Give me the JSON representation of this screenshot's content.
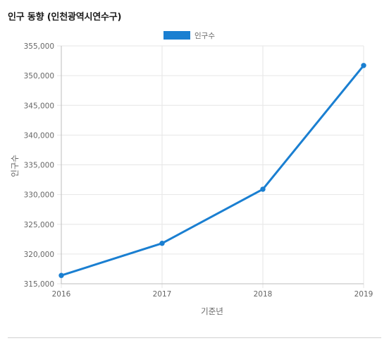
{
  "page": {
    "title": "인구 동향 (인천광역시연수구)"
  },
  "chart_data": {
    "type": "line",
    "x": [
      "2016",
      "2017",
      "2018",
      "2019"
    ],
    "series": [
      {
        "name": "인구수",
        "values": [
          316400,
          321800,
          330900,
          351700
        ],
        "color": "#1a7fd1"
      }
    ],
    "xlabel": "기준년",
    "ylabel": "인구수",
    "ylim": [
      315000,
      355000
    ],
    "yticks": [
      "315,000",
      "320,000",
      "325,000",
      "330,000",
      "335,000",
      "340,000",
      "345,000",
      "350,000",
      "355,000"
    ],
    "grid": true,
    "legend": "top-center"
  }
}
